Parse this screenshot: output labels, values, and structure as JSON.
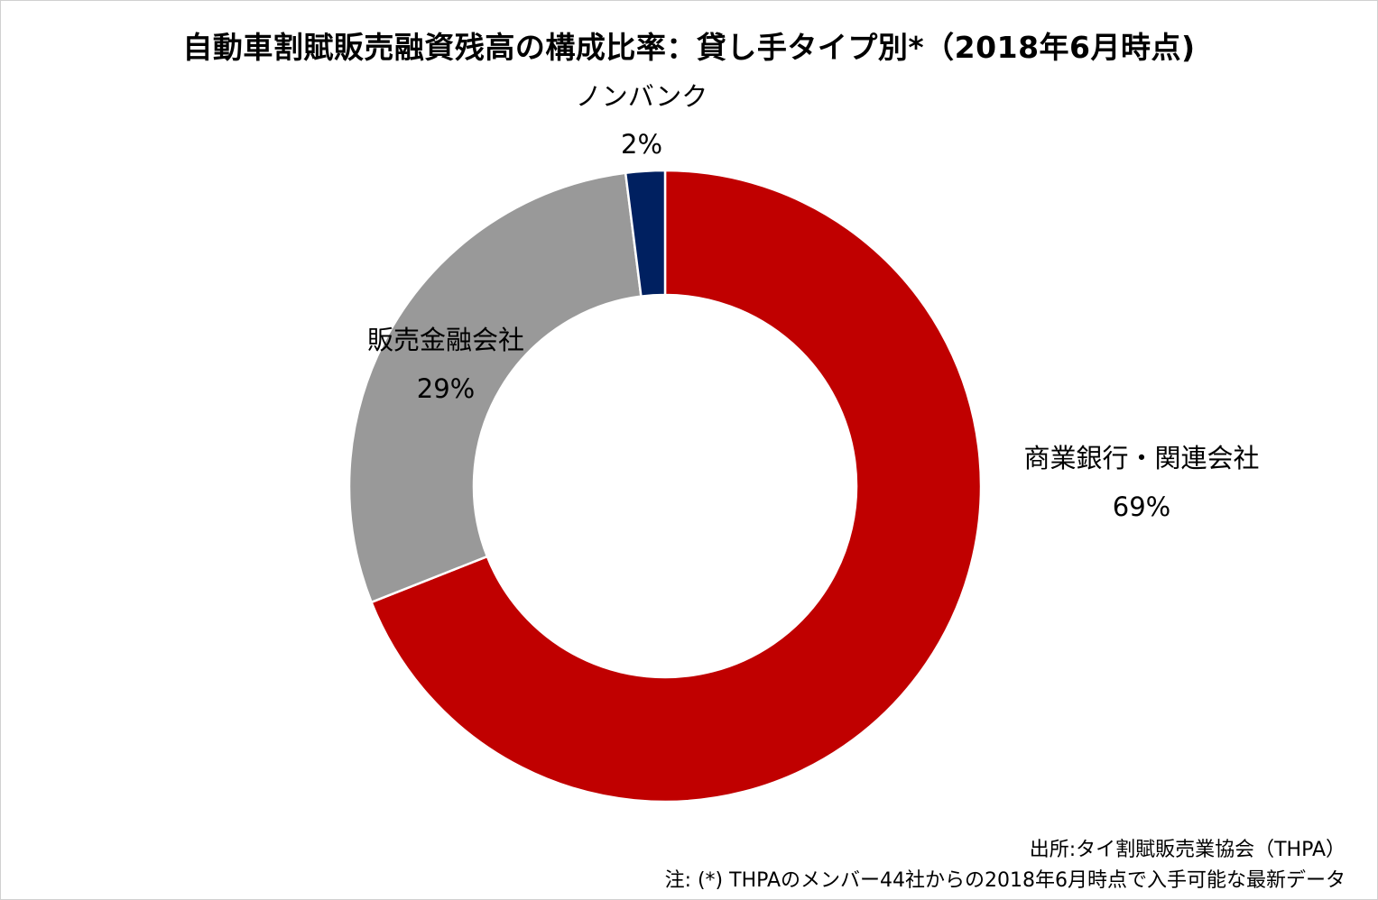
{
  "chart_data": {
    "type": "pie",
    "title": "自動車割賦販売融資残高の構成比率：貸し手タイプ別*（2018年6月時点)",
    "slices": [
      {
        "label": "商業銀行・関連会社",
        "value": 69,
        "display": "69%",
        "color": "#C00000"
      },
      {
        "label": "販売金融会社",
        "value": 29,
        "display": "29%",
        "color": "#999999"
      },
      {
        "label": "ノンバンク",
        "value": 2,
        "display": "2%",
        "color": "#002060"
      }
    ],
    "legend": "none",
    "donut": true
  },
  "notes": {
    "source": "出所:タイ割賦販売業協会（THPA）",
    "note": "注: (*) THPAのメンバー44社からの2018年6月時点で入手可能な最新データ"
  }
}
